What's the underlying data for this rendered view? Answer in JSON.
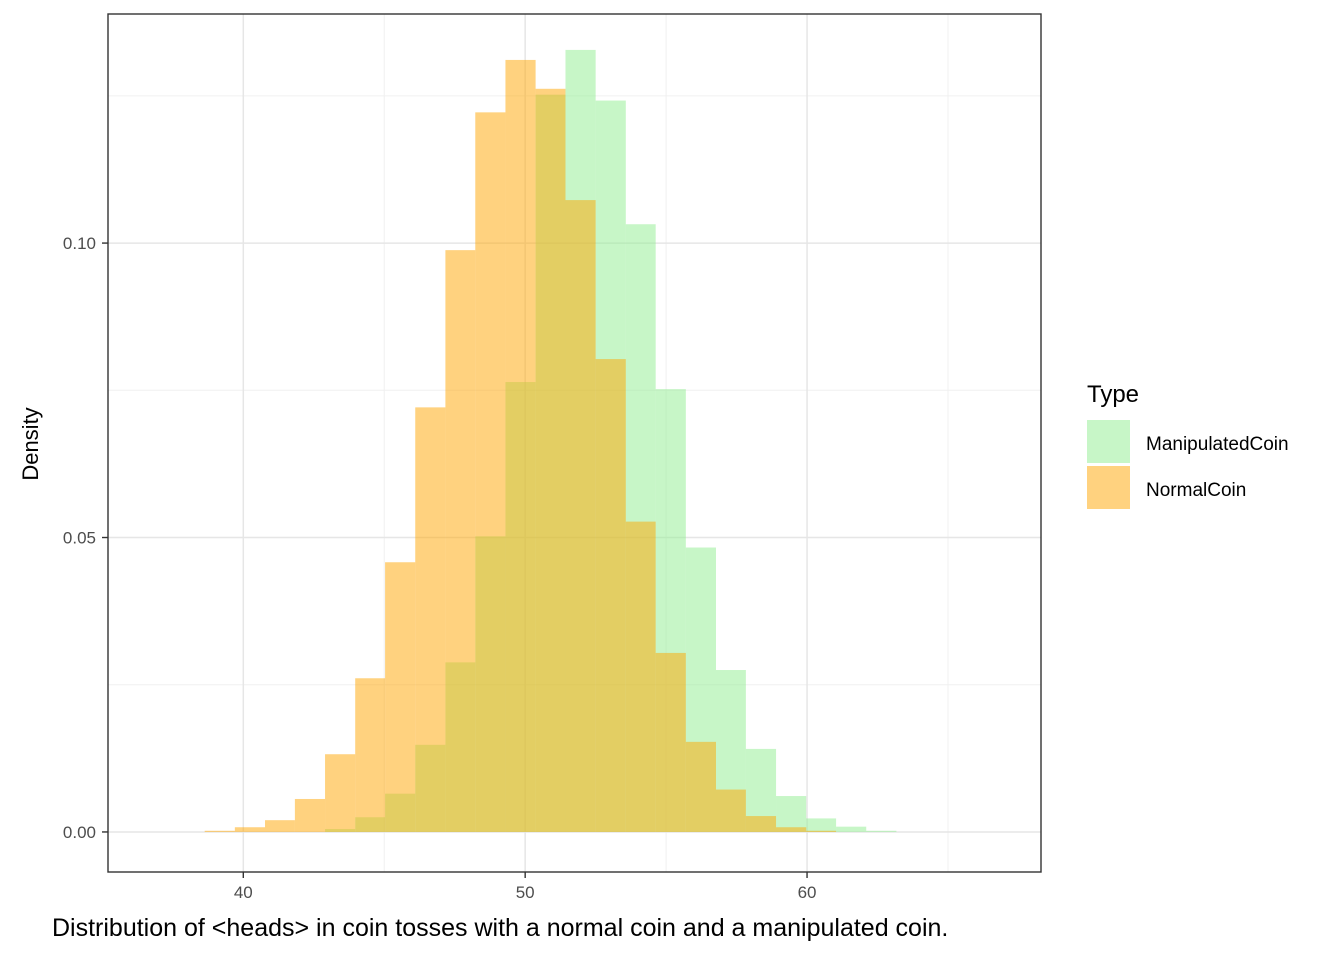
{
  "chart_data": {
    "type": "bar",
    "histogram": true,
    "ylabel": "Density",
    "xlabel": "",
    "xlim": [
      35.2,
      68.3
    ],
    "ylim": [
      -0.0068,
      0.1389
    ],
    "x_ticks": [
      40,
      50,
      60
    ],
    "y_ticks": [
      0.0,
      0.05,
      0.1
    ],
    "y_tick_labels": [
      "0.00",
      "0.05",
      "0.10"
    ],
    "y_minor_gridlines": [
      0.025,
      0.075,
      0.125
    ],
    "x_minor_gridlines": [
      45,
      55,
      65
    ],
    "grid": true,
    "legend": {
      "title": "Type",
      "position": "right"
    },
    "series": [
      {
        "name": "ManipulatedCoin",
        "color": "#90EE90",
        "opacity": 0.5,
        "bins": [
          {
            "x0": 42.9,
            "x1": 43.97,
            "y": 0.0005
          },
          {
            "x0": 43.97,
            "x1": 45.03,
            "y": 0.0025
          },
          {
            "x0": 45.03,
            "x1": 46.1,
            "y": 0.0065
          },
          {
            "x0": 46.1,
            "x1": 47.17,
            "y": 0.0148
          },
          {
            "x0": 47.17,
            "x1": 48.23,
            "y": 0.0288
          },
          {
            "x0": 48.23,
            "x1": 49.3,
            "y": 0.0502
          },
          {
            "x0": 49.3,
            "x1": 50.37,
            "y": 0.0764
          },
          {
            "x0": 50.37,
            "x1": 51.43,
            "y": 0.1252
          },
          {
            "x0": 51.43,
            "x1": 52.5,
            "y": 0.1328
          },
          {
            "x0": 52.5,
            "x1": 53.57,
            "y": 0.1242
          },
          {
            "x0": 53.57,
            "x1": 54.63,
            "y": 0.1032
          },
          {
            "x0": 54.63,
            "x1": 55.7,
            "y": 0.0752
          },
          {
            "x0": 55.7,
            "x1": 56.77,
            "y": 0.0483
          },
          {
            "x0": 56.77,
            "x1": 57.83,
            "y": 0.0275
          },
          {
            "x0": 57.83,
            "x1": 58.9,
            "y": 0.0141
          },
          {
            "x0": 58.9,
            "x1": 59.97,
            "y": 0.0061
          },
          {
            "x0": 59.97,
            "x1": 61.03,
            "y": 0.0023
          },
          {
            "x0": 61.03,
            "x1": 62.1,
            "y": 0.0009
          },
          {
            "x0": 62.1,
            "x1": 63.17,
            "y": 0.0002
          }
        ]
      },
      {
        "name": "NormalCoin",
        "color": "#FFA500",
        "opacity": 0.5,
        "bins": [
          {
            "x0": 38.63,
            "x1": 39.7,
            "y": 0.0002
          },
          {
            "x0": 39.7,
            "x1": 40.77,
            "y": 0.0008
          },
          {
            "x0": 40.77,
            "x1": 41.83,
            "y": 0.002
          },
          {
            "x0": 41.83,
            "x1": 42.9,
            "y": 0.0056
          },
          {
            "x0": 42.9,
            "x1": 43.97,
            "y": 0.0132
          },
          {
            "x0": 43.97,
            "x1": 45.03,
            "y": 0.0261
          },
          {
            "x0": 45.03,
            "x1": 46.1,
            "y": 0.0458
          },
          {
            "x0": 46.1,
            "x1": 47.17,
            "y": 0.0721
          },
          {
            "x0": 47.17,
            "x1": 48.23,
            "y": 0.0988
          },
          {
            "x0": 48.23,
            "x1": 49.3,
            "y": 0.1222
          },
          {
            "x0": 49.3,
            "x1": 50.37,
            "y": 0.1311
          },
          {
            "x0": 50.37,
            "x1": 51.43,
            "y": 0.1262
          },
          {
            "x0": 51.43,
            "x1": 52.5,
            "y": 0.1073
          },
          {
            "x0": 52.5,
            "x1": 53.57,
            "y": 0.0803
          },
          {
            "x0": 53.57,
            "x1": 54.63,
            "y": 0.0527
          },
          {
            "x0": 54.63,
            "x1": 55.7,
            "y": 0.0304
          },
          {
            "x0": 55.7,
            "x1": 56.77,
            "y": 0.0153
          },
          {
            "x0": 56.77,
            "x1": 57.83,
            "y": 0.0072
          },
          {
            "x0": 57.83,
            "x1": 58.9,
            "y": 0.0027
          },
          {
            "x0": 58.9,
            "x1": 59.97,
            "y": 0.0008
          },
          {
            "x0": 59.97,
            "x1": 61.03,
            "y": 0.0002
          }
        ]
      }
    ]
  },
  "caption": "Distribution of <heads> in coin tosses with a normal coin and a manipulated coin."
}
